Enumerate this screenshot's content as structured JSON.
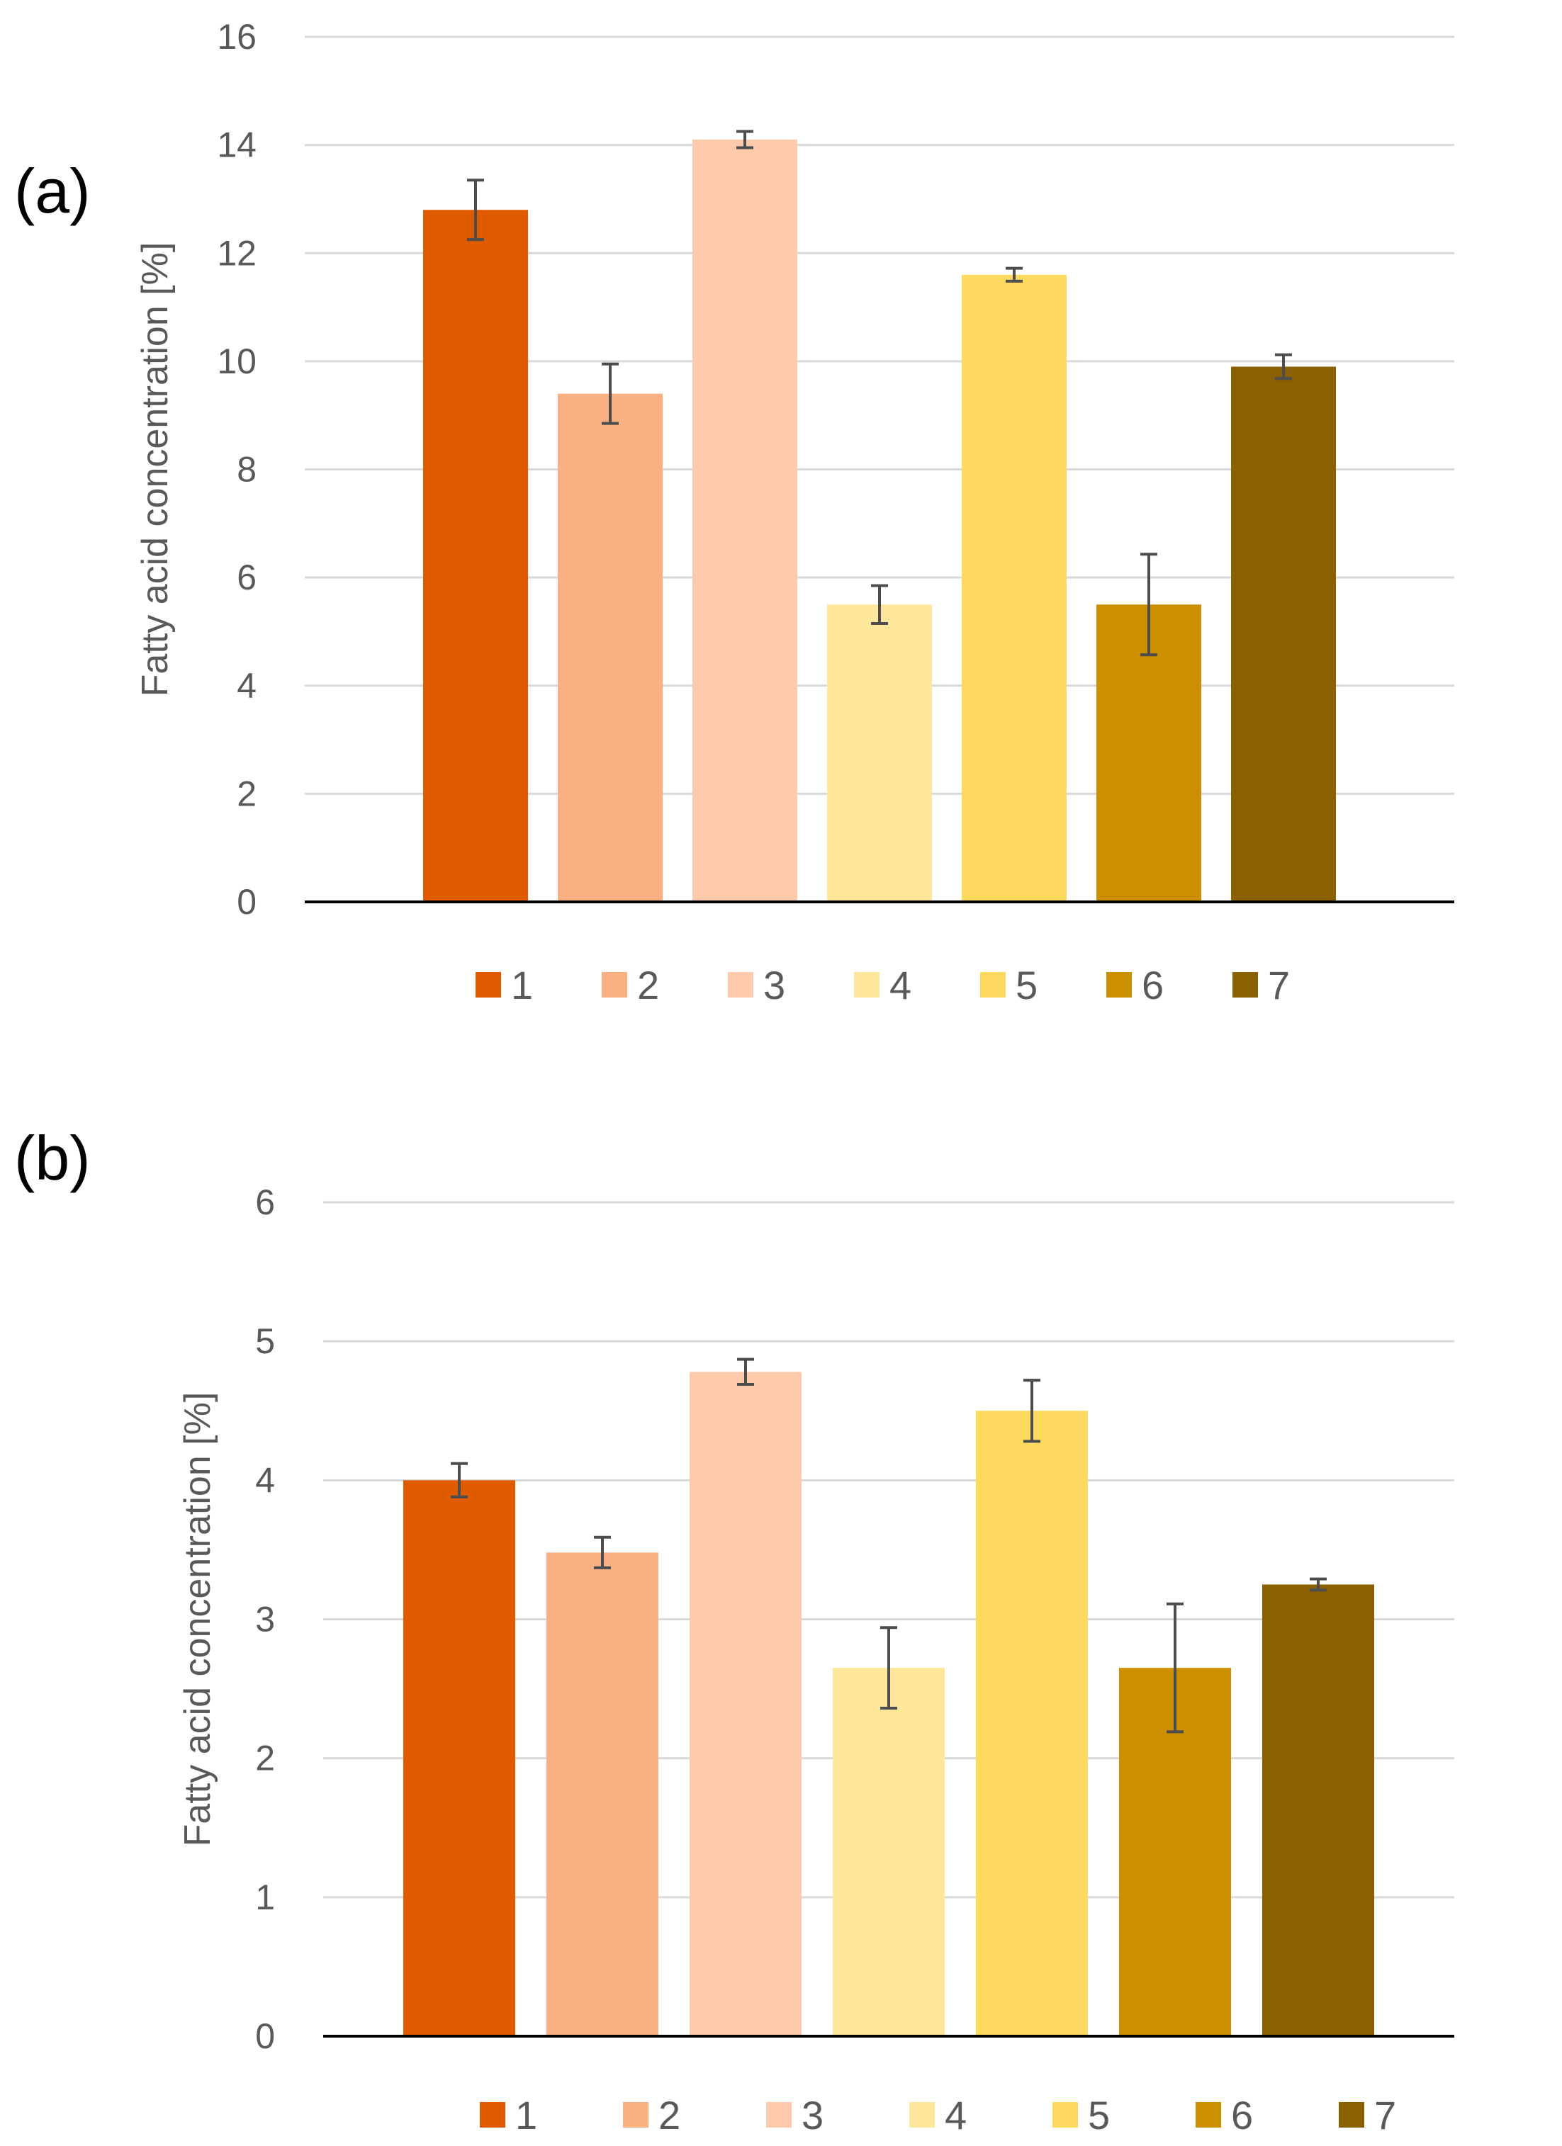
{
  "chart_data": [
    {
      "type": "bar",
      "panel_label": "(a)",
      "ylabel": "Fatty acid concentration [%]",
      "ylim": [
        0,
        16
      ],
      "yticks": [
        0,
        2,
        4,
        6,
        8,
        10,
        12,
        14,
        16
      ],
      "grid": true,
      "legend_position": "bottom",
      "categories": [
        "1",
        "2",
        "3",
        "4",
        "5",
        "6",
        "7"
      ],
      "values": [
        12.8,
        9.4,
        14.1,
        5.5,
        11.6,
        5.5,
        9.9
      ],
      "errors": [
        0.55,
        0.55,
        0.15,
        0.35,
        0.12,
        0.93,
        0.22
      ],
      "colors": [
        "#E05A00",
        "#FBB082",
        "#FDCBAC",
        "#FEE69A",
        "#FED95F",
        "#CC8F00",
        "#8B6000"
      ]
    },
    {
      "type": "bar",
      "panel_label": "(b)",
      "ylabel": "Fatty acid concentration [%]",
      "ylim": [
        0,
        6
      ],
      "yticks": [
        0,
        1,
        2,
        3,
        4,
        5,
        6
      ],
      "grid": true,
      "legend_position": "bottom",
      "categories": [
        "1",
        "2",
        "3",
        "4",
        "5",
        "6",
        "7"
      ],
      "values": [
        4.0,
        3.48,
        4.78,
        2.65,
        4.5,
        2.65,
        3.25
      ],
      "errors": [
        0.12,
        0.11,
        0.09,
        0.29,
        0.22,
        0.46,
        0.04
      ],
      "colors": [
        "#E05A00",
        "#FBB082",
        "#FDCBAC",
        "#FEE69A",
        "#FED95F",
        "#CC8F00",
        "#8B6000"
      ]
    }
  ]
}
